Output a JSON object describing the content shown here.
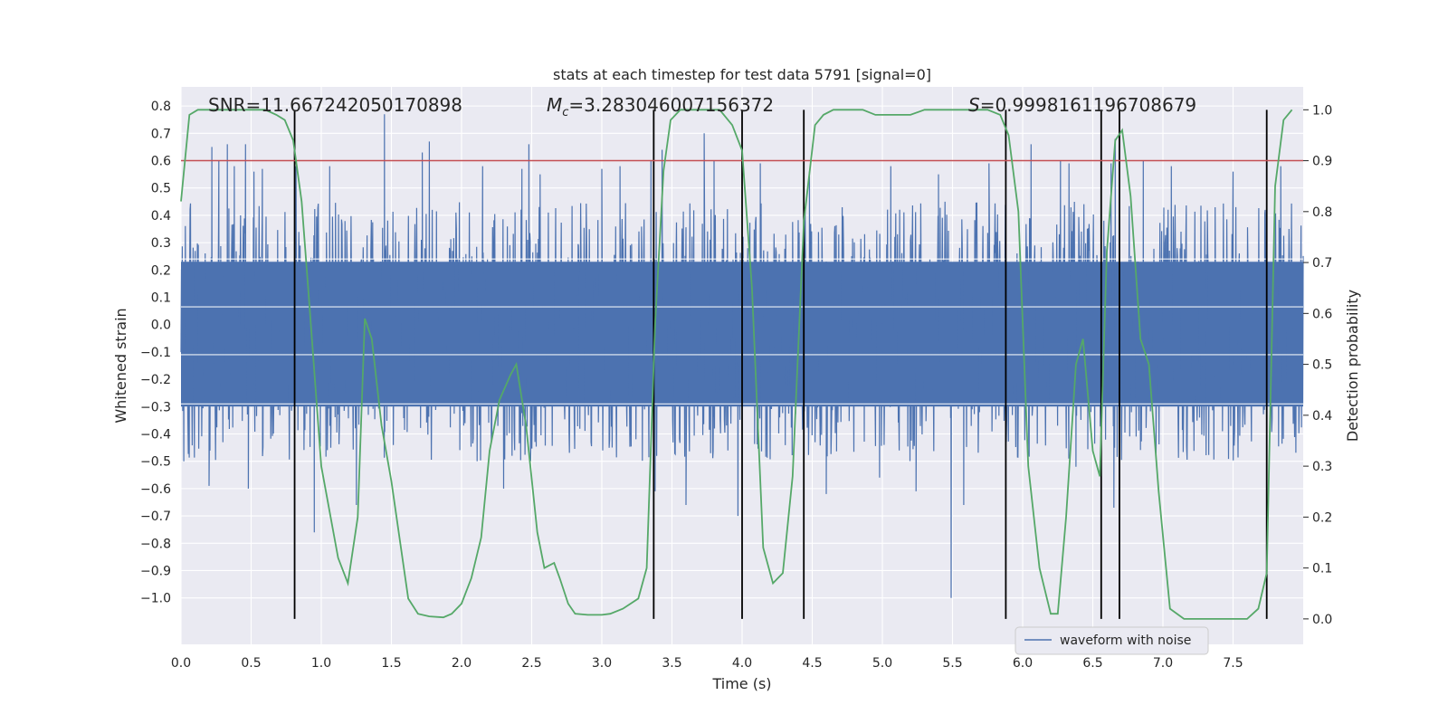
{
  "chart_data": {
    "type": "line",
    "title": "stats at each timestep for test data 5791 [signal=0]",
    "xlabel": "Time (s)",
    "ylabel": "Whitened strain",
    "y2label": "Detection probability",
    "xlim": [
      0,
      8
    ],
    "ylim": [
      -1.17,
      0.87
    ],
    "y2lim": [
      -0.05,
      1.045
    ],
    "x_ticks": [
      0.0,
      0.5,
      1.0,
      1.5,
      2.0,
      2.5,
      3.0,
      3.5,
      4.0,
      4.5,
      5.0,
      5.5,
      6.0,
      6.5,
      7.0,
      7.5
    ],
    "x_tick_labels": [
      "0.0",
      "0.5",
      "1.0",
      "1.5",
      "2.0",
      "2.5",
      "3.0",
      "3.5",
      "4.0",
      "4.5",
      "5.0",
      "5.5",
      "6.0",
      "6.5",
      "7.0",
      "7.5"
    ],
    "y_ticks": [
      0.8,
      0.7,
      0.6,
      0.5,
      0.4,
      0.3,
      0.2,
      0.1,
      0.0,
      -0.1,
      -0.2,
      -0.3,
      -0.4,
      -0.5,
      -0.6,
      -0.7,
      -0.8,
      -0.9,
      -1.0
    ],
    "y_tick_labels": [
      "0.8",
      "0.7",
      "0.6",
      "0.5",
      "0.4",
      "0.3",
      "0.2",
      "0.1",
      "0.0",
      "−0.1",
      "−0.2",
      "−0.3",
      "−0.4",
      "−0.5",
      "−0.6",
      "−0.7",
      "−0.8",
      "−0.9",
      "−1.0"
    ],
    "y2_ticks": [
      1.0,
      0.9,
      0.8,
      0.7,
      0.6,
      0.5,
      0.4,
      0.3,
      0.2,
      0.1,
      0.0
    ],
    "y2_tick_labels": [
      "1.0",
      "0.9",
      "0.8",
      "0.7",
      "0.6",
      "0.5",
      "0.4",
      "0.3",
      "0.2",
      "0.1",
      "0.0"
    ],
    "grid": true,
    "annotations": {
      "snr": "SNR=11.667242050170898",
      "mc_symbol": "M",
      "mc_sub": "c",
      "mc_value": "=3.283046007156372",
      "s_symbol": "S",
      "s_value": "=0.9998161196708679"
    },
    "threshold": {
      "value": 0.6,
      "color": "#c44e52"
    },
    "vlines": [
      0.81,
      3.37,
      4.0,
      4.44,
      5.88,
      6.56,
      6.69,
      7.74
    ],
    "legend": {
      "position": "lower-right",
      "label": "waveform with noise"
    },
    "strain_series": {
      "name": "waveform with noise",
      "color": "#4c72b0",
      "note_bulk_envelope": [
        -0.3,
        0.23
      ],
      "spikes_up": [
        [
          0.22,
          0.65
        ],
        [
          0.27,
          0.6
        ],
        [
          0.33,
          0.66
        ],
        [
          0.38,
          0.58
        ],
        [
          0.46,
          0.66
        ],
        [
          0.52,
          0.56
        ],
        [
          0.58,
          0.57
        ],
        [
          0.82,
          0.58
        ],
        [
          1.06,
          0.58
        ],
        [
          1.45,
          0.77
        ],
        [
          1.72,
          0.63
        ],
        [
          1.77,
          0.67
        ],
        [
          2.15,
          0.58
        ],
        [
          2.43,
          0.57
        ],
        [
          2.48,
          0.66
        ],
        [
          2.56,
          0.55
        ],
        [
          3.0,
          0.57
        ],
        [
          3.13,
          0.58
        ],
        [
          3.35,
          0.6
        ],
        [
          3.43,
          0.64
        ],
        [
          3.73,
          0.7
        ],
        [
          3.8,
          0.6
        ],
        [
          4.13,
          0.59
        ],
        [
          4.48,
          0.56
        ],
        [
          5.06,
          0.58
        ],
        [
          5.4,
          0.55
        ],
        [
          5.76,
          0.59
        ],
        [
          6.06,
          0.66
        ],
        [
          6.27,
          0.6
        ],
        [
          6.33,
          0.59
        ],
        [
          6.63,
          0.59
        ],
        [
          6.66,
          0.68
        ],
        [
          6.86,
          0.6
        ],
        [
          7.06,
          0.58
        ],
        [
          7.5,
          0.56
        ],
        [
          7.84,
          0.58
        ]
      ],
      "spikes_down": [
        [
          0.02,
          -0.5
        ],
        [
          0.2,
          -0.59
        ],
        [
          0.48,
          -0.6
        ],
        [
          0.95,
          -0.76
        ],
        [
          1.25,
          -0.66
        ],
        [
          2.3,
          -0.6
        ],
        [
          3.38,
          -0.61
        ],
        [
          3.6,
          -0.66
        ],
        [
          3.97,
          -0.7
        ],
        [
          4.6,
          -0.62
        ],
        [
          4.98,
          -0.56
        ],
        [
          5.24,
          -0.61
        ],
        [
          5.49,
          -1.0
        ],
        [
          5.58,
          -0.66
        ],
        [
          6.38,
          -0.52
        ],
        [
          6.65,
          -0.67
        ],
        [
          7.74,
          -0.73
        ]
      ]
    },
    "probability_series": {
      "name": "",
      "color": "#55a868",
      "x": [
        0.0,
        0.06,
        0.12,
        0.2,
        0.3,
        0.4,
        0.5,
        0.6,
        0.68,
        0.74,
        0.8,
        0.86,
        0.92,
        1.0,
        1.12,
        1.19,
        1.26,
        1.31,
        1.36,
        1.43,
        1.5,
        1.62,
        1.69,
        1.77,
        1.87,
        1.93,
        2.0,
        2.07,
        2.14,
        2.2,
        2.27,
        2.35,
        2.39,
        2.46,
        2.54,
        2.59,
        2.66,
        2.7,
        2.76,
        2.81,
        2.9,
        3.0,
        3.06,
        3.15,
        3.26,
        3.32,
        3.38,
        3.44,
        3.49,
        3.56,
        3.65,
        3.75,
        3.84,
        3.93,
        4.0,
        4.07,
        4.15,
        4.22,
        4.29,
        4.36,
        4.44,
        4.52,
        4.58,
        4.65,
        4.75,
        4.86,
        4.95,
        5.05,
        5.2,
        5.3,
        5.4,
        5.5,
        5.62,
        5.75,
        5.84,
        5.9,
        5.97,
        6.04,
        6.12,
        6.2,
        6.25,
        6.31,
        6.38,
        6.43,
        6.5,
        6.55,
        6.6,
        6.66,
        6.71,
        6.77,
        6.84,
        6.9,
        6.97,
        7.05,
        7.15,
        7.3,
        7.45,
        7.6,
        7.68,
        7.74,
        7.8,
        7.86,
        7.92
      ],
      "y": [
        0.82,
        0.99,
        1.0,
        1.0,
        1.0,
        1.0,
        1.0,
        1.0,
        0.99,
        0.98,
        0.94,
        0.82,
        0.6,
        0.3,
        0.12,
        0.07,
        0.2,
        0.59,
        0.55,
        0.38,
        0.27,
        0.04,
        0.01,
        0.005,
        0.003,
        0.01,
        0.03,
        0.08,
        0.16,
        0.33,
        0.43,
        0.48,
        0.5,
        0.38,
        0.17,
        0.1,
        0.11,
        0.08,
        0.03,
        0.01,
        0.008,
        0.008,
        0.01,
        0.02,
        0.04,
        0.1,
        0.58,
        0.88,
        0.98,
        1.0,
        1.0,
        1.0,
        1.0,
        0.97,
        0.92,
        0.65,
        0.14,
        0.07,
        0.09,
        0.28,
        0.78,
        0.97,
        0.99,
        1.0,
        1.0,
        1.0,
        0.99,
        0.99,
        0.99,
        1.0,
        1.0,
        1.0,
        1.0,
        1.0,
        0.99,
        0.95,
        0.8,
        0.3,
        0.1,
        0.01,
        0.01,
        0.2,
        0.5,
        0.55,
        0.33,
        0.28,
        0.72,
        0.94,
        0.96,
        0.83,
        0.55,
        0.5,
        0.25,
        0.02,
        0.0,
        0.0,
        0.0,
        0.0,
        0.02,
        0.09,
        0.85,
        0.98,
        1.0
      ]
    }
  }
}
